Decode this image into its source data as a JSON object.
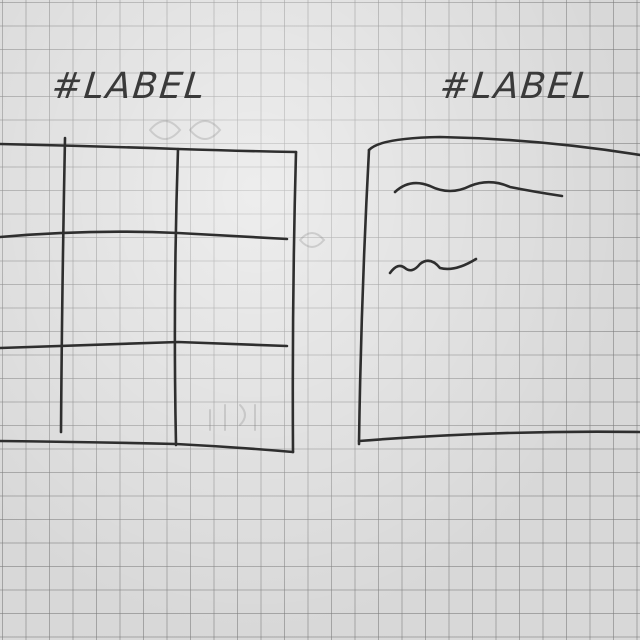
{
  "sketch": {
    "left_panel": {
      "label": "#LABEL"
    },
    "right_panel": {
      "label": "#LABEL"
    }
  }
}
